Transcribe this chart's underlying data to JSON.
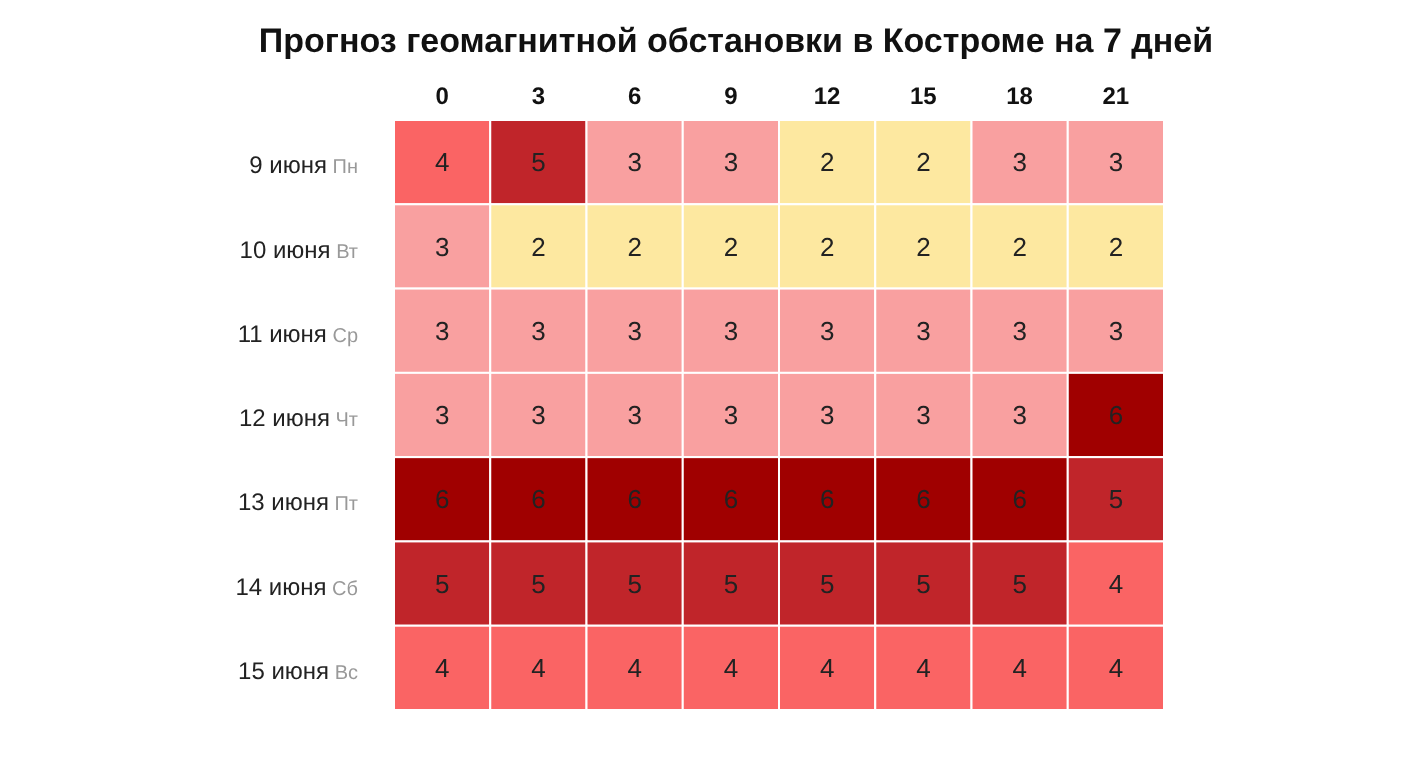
{
  "chart_data": {
    "type": "heatmap",
    "title": "Прогноз геомагнитной обстановки в Костроме на 7 дней",
    "categories": [
      "0",
      "3",
      "6",
      "9",
      "12",
      "15",
      "18",
      "21"
    ],
    "y_categories": [
      "9 июня Пн",
      "10 июня Вт",
      "11 июня Ср",
      "12 июня Чт",
      "13 июня Пт",
      "14 июня Сб",
      "15 июня Вс"
    ],
    "cells": [
      [
        4,
        5,
        3,
        3,
        2,
        2,
        3,
        3
      ],
      [
        3,
        2,
        2,
        2,
        2,
        2,
        2,
        2
      ],
      [
        3,
        3,
        3,
        3,
        3,
        3,
        3,
        3
      ],
      [
        3,
        3,
        3,
        3,
        3,
        3,
        3,
        6
      ],
      [
        6,
        6,
        6,
        6,
        6,
        6,
        6,
        5
      ],
      [
        5,
        5,
        5,
        5,
        5,
        5,
        5,
        4
      ],
      [
        4,
        4,
        4,
        4,
        4,
        4,
        4,
        4
      ]
    ],
    "colors": [
      [
        "#fa6464",
        "#c0252a",
        "#f9a0a0",
        "#f9a0a0",
        "#fde8a0",
        "#fde8a0",
        "#f9a0a0",
        "#f9a0a0"
      ],
      [
        "#f9a0a0",
        "#fde8a0",
        "#fde8a0",
        "#fde8a0",
        "#fde8a0",
        "#fde8a0",
        "#fde8a0",
        "#fde8a0"
      ],
      [
        "#f9a0a0",
        "#f9a0a0",
        "#f9a0a0",
        "#f9a0a0",
        "#f9a0a0",
        "#f9a0a0",
        "#f9a0a0",
        "#f9a0a0"
      ],
      [
        "#f9a0a0",
        "#f9a0a0",
        "#f9a0a0",
        "#f9a0a0",
        "#f9a0a0",
        "#f9a0a0",
        "#f9a0a0",
        "#a00000"
      ],
      [
        "#a00000",
        "#a00000",
        "#a00000",
        "#a00000",
        "#a00000",
        "#a00000",
        "#a00000",
        "#c0252a"
      ],
      [
        "#c0252a",
        "#c0252a",
        "#c0252a",
        "#c0252a",
        "#c0252a",
        "#c0252a",
        "#c0252a",
        "#fa6464"
      ],
      [
        "#fa6464",
        "#fa6464",
        "#fa6464",
        "#fa6464",
        "#fa6464",
        "#fa6464",
        "#fa6464",
        "#fa6464"
      ]
    ],
    "data_labels": true
  }
}
